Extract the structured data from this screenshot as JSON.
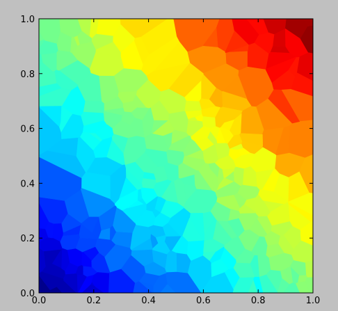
{
  "chart_data": {
    "type": "heatmap",
    "subtype": "voronoi",
    "title": "",
    "xlabel": "",
    "ylabel": "",
    "xlim": [
      0.0,
      1.0
    ],
    "ylim": [
      0.0,
      1.0
    ],
    "xticks": [
      "0.0",
      "0.2",
      "0.4",
      "0.6",
      "0.8",
      "1.0"
    ],
    "yticks": [
      "0.0",
      "0.2",
      "0.4",
      "0.6",
      "0.8",
      "1.0"
    ],
    "grid": false,
    "legend": "none",
    "colormap": "jet",
    "value_field": "approximately (x + y) / 2, ranging 0 (dark blue, lower-left) to 1 (dark red, upper-right)",
    "figure_background": "#c0c0c0",
    "plot_background": "#ffffff",
    "frame_color": "#000000"
  }
}
